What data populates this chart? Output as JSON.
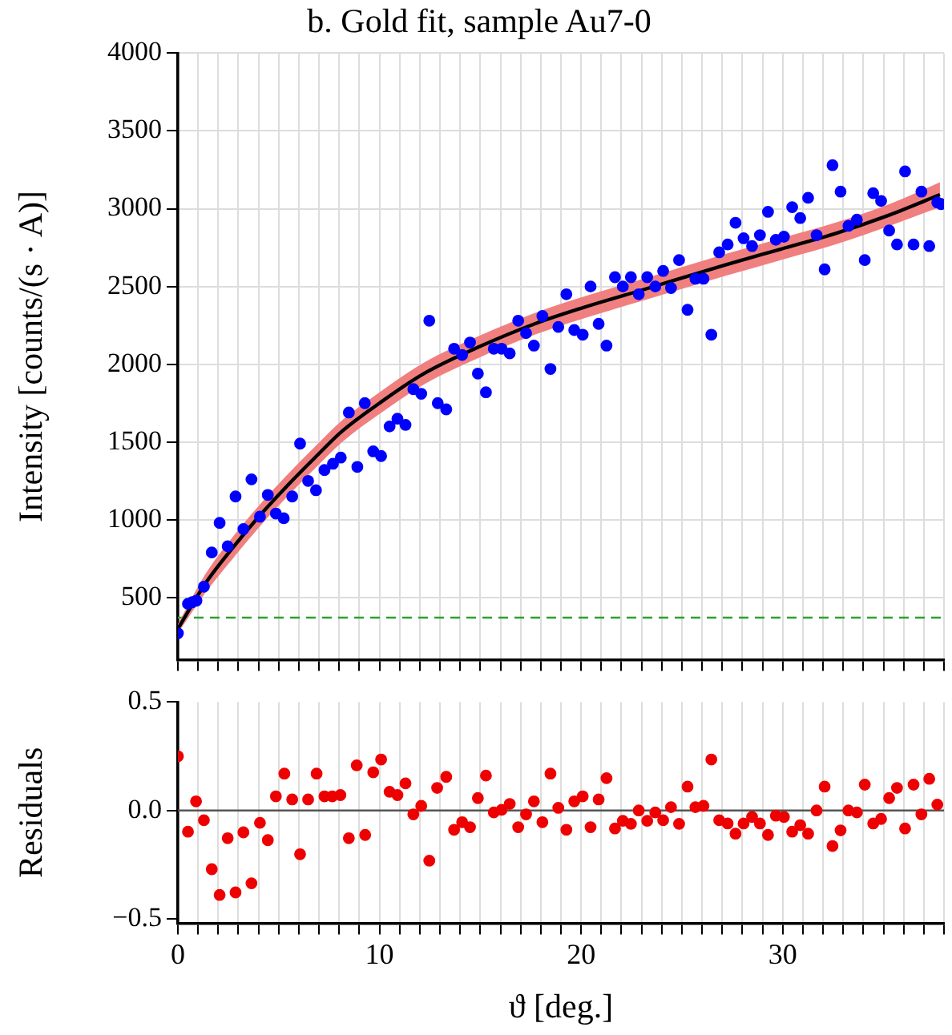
{
  "chart_data": [
    {
      "type": "scatter",
      "title": "b. Gold fit, sample Au7-0",
      "ylabel": "Intensity [counts/(s · A)]",
      "xlim": [
        0,
        38
      ],
      "xticks": [
        0,
        {
          "value": 1,
          "label": null
        },
        {
          "value": 2,
          "label": null
        },
        {
          "value": 3,
          "label": null
        },
        {
          "value": 4,
          "label": null
        },
        {
          "value": 5,
          "label": null
        },
        {
          "value": 6,
          "label": null
        },
        {
          "value": 7,
          "label": null
        },
        {
          "value": 8,
          "label": null
        },
        {
          "value": 9,
          "label": null
        },
        10,
        {
          "value": 11,
          "label": null
        },
        {
          "value": 12,
          "label": null
        },
        {
          "value": 13,
          "label": null
        },
        {
          "value": 14,
          "label": null
        },
        {
          "value": 15,
          "label": null
        },
        {
          "value": 16,
          "label": null
        },
        {
          "value": 17,
          "label": null
        },
        {
          "value": 18,
          "label": null
        },
        {
          "value": 19,
          "label": null
        },
        20,
        {
          "value": 21,
          "label": null
        },
        {
          "value": 22,
          "label": null
        },
        {
          "value": 23,
          "label": null
        },
        {
          "value": 24,
          "label": null
        },
        {
          "value": 25,
          "label": null
        },
        {
          "value": 26,
          "label": null
        },
        {
          "value": 27,
          "label": null
        },
        {
          "value": 28,
          "label": null
        },
        {
          "value": 29,
          "label": null
        },
        30,
        {
          "value": 31,
          "label": null
        },
        {
          "value": 32,
          "label": null
        },
        {
          "value": 33,
          "label": null
        },
        {
          "value": 34,
          "label": null
        },
        {
          "value": 35,
          "label": null
        },
        {
          "value": 36,
          "label": null
        },
        {
          "value": 37,
          "label": null
        },
        {
          "value": 38,
          "label": null
        }
      ],
      "ylim": [
        100,
        4000
      ],
      "yticks": [
        500,
        1000,
        1500,
        2000,
        2500,
        3000,
        3500,
        4000
      ],
      "tick_labels": "y",
      "grid": true,
      "legend": false,
      "marker": "circle",
      "ref_lines": [
        {
          "axis": "y",
          "value": 371,
          "color": "#2ca02c",
          "line_style": "dashed"
        }
      ],
      "series": [
        {
          "type": "scatter",
          "color": "#0000ff",
          "x": [
            0,
            0.5,
            0.71,
            0.92,
            1.29,
            1.68,
            2.07,
            2.47,
            2.86,
            3.25,
            3.65,
            4.07,
            4.46,
            4.86,
            5.25,
            5.67,
            6.06,
            6.46,
            6.85,
            7.27,
            7.69,
            8.08,
            8.48,
            8.9,
            9.27,
            9.69,
            10.08,
            10.5,
            10.89,
            11.29,
            11.68,
            12.07,
            12.47,
            12.89,
            13.31,
            13.7,
            14.1,
            14.49,
            14.88,
            15.28,
            15.67,
            16.06,
            16.46,
            16.88,
            17.27,
            17.66,
            18.08,
            18.48,
            18.87,
            19.27,
            19.66,
            20.08,
            20.47,
            20.87,
            21.26,
            21.68,
            22.07,
            22.47,
            22.86,
            23.28,
            23.68,
            24.07,
            24.46,
            24.86,
            25.28,
            25.67,
            26.07,
            26.46,
            26.85,
            27.27,
            27.66,
            28.06,
            28.48,
            28.87,
            29.27,
            29.66,
            30.06,
            30.47,
            30.87,
            31.26,
            31.68,
            32.08,
            32.47,
            32.87,
            33.26,
            33.68,
            34.07,
            34.49,
            34.88,
            35.28,
            35.67,
            36.07,
            36.49,
            36.88,
            37.27,
            37.67,
            37.86
          ],
          "values": [
            270,
            460,
            470,
            480,
            570,
            790,
            980,
            830,
            1150,
            940,
            1260,
            1020,
            1160,
            1040,
            1010,
            1150,
            1490,
            1250,
            1190,
            1320,
            1360,
            1400,
            1690,
            1340,
            1750,
            1440,
            1410,
            1600,
            1650,
            1610,
            1840,
            1810,
            2280,
            1750,
            1710,
            2100,
            2060,
            2140,
            1940,
            1820,
            2100,
            2100,
            2070,
            2280,
            2200,
            2120,
            2310,
            1970,
            2240,
            2450,
            2220,
            2190,
            2500,
            2260,
            2120,
            2560,
            2500,
            2560,
            2450,
            2560,
            2500,
            2600,
            2490,
            2670,
            2350,
            2550,
            2550,
            2190,
            2720,
            2770,
            2910,
            2810,
            2760,
            2830,
            2980,
            2800,
            2820,
            3010,
            2940,
            3070,
            2830,
            2610,
            3280,
            3110,
            2890,
            2930,
            2670,
            3100,
            3050,
            2860,
            2770,
            3240,
            2770,
            3110,
            2760,
            3040,
            3030
          ]
        },
        {
          "type": "line",
          "color": "#000000",
          "marker": "none",
          "x": [
            0,
            1.36,
            2.72,
            4.08,
            5.43,
            6.8,
            8.15,
            10,
            12.2,
            14.9,
            17.7,
            20,
            23.1,
            27.2,
            29.9,
            32.6,
            35.3,
            37.8
          ],
          "values": [
            300,
            590,
            820,
            1030,
            1220,
            1400,
            1570,
            1750,
            1940,
            2110,
            2260,
            2360,
            2480,
            2640,
            2740,
            2840,
            2960,
            3090
          ],
          "lower": [
            270,
            530,
            750,
            960,
            1150,
            1330,
            1500,
            1680,
            1870,
            2040,
            2190,
            2290,
            2410,
            2570,
            2670,
            2770,
            2890,
            3010
          ],
          "upper": [
            330,
            650,
            890,
            1100,
            1290,
            1470,
            1640,
            1820,
            2010,
            2180,
            2330,
            2430,
            2550,
            2710,
            2810,
            2910,
            3030,
            3170
          ]
        }
      ]
    },
    {
      "type": "scatter",
      "xlabel": "ϑ [deg.]",
      "ylabel": "Residuals",
      "xlim": [
        0,
        38
      ],
      "xticks": [
        0,
        {
          "value": 1,
          "label": null
        },
        {
          "value": 2,
          "label": null
        },
        {
          "value": 3,
          "label": null
        },
        {
          "value": 4,
          "label": null
        },
        {
          "value": 5,
          "label": null
        },
        {
          "value": 6,
          "label": null
        },
        {
          "value": 7,
          "label": null
        },
        {
          "value": 8,
          "label": null
        },
        {
          "value": 9,
          "label": null
        },
        10,
        {
          "value": 11,
          "label": null
        },
        {
          "value": 12,
          "label": null
        },
        {
          "value": 13,
          "label": null
        },
        {
          "value": 14,
          "label": null
        },
        {
          "value": 15,
          "label": null
        },
        {
          "value": 16,
          "label": null
        },
        {
          "value": 17,
          "label": null
        },
        {
          "value": 18,
          "label": null
        },
        {
          "value": 19,
          "label": null
        },
        20,
        {
          "value": 21,
          "label": null
        },
        {
          "value": 22,
          "label": null
        },
        {
          "value": 23,
          "label": null
        },
        {
          "value": 24,
          "label": null
        },
        {
          "value": 25,
          "label": null
        },
        {
          "value": 26,
          "label": null
        },
        {
          "value": 27,
          "label": null
        },
        {
          "value": 28,
          "label": null
        },
        {
          "value": 29,
          "label": null
        },
        30,
        {
          "value": 31,
          "label": null
        },
        {
          "value": 32,
          "label": null
        },
        {
          "value": 33,
          "label": null
        },
        {
          "value": 34,
          "label": null
        },
        {
          "value": 35,
          "label": null
        },
        {
          "value": 36,
          "label": null
        },
        {
          "value": 37,
          "label": null
        },
        {
          "value": 38,
          "label": null
        }
      ],
      "ylim": [
        -0.52,
        0.5
      ],
      "yticks": [
        {
          "value": -0.5,
          "label": "−0.5"
        },
        {
          "value": 0,
          "label": "0.0"
        },
        {
          "value": 0.5,
          "label": "0.5"
        }
      ],
      "grid": "x",
      "legend": false,
      "marker": "circle",
      "ref_lines": [
        {
          "axis": "y",
          "value": 0,
          "color": "#555555",
          "line_style": "solid"
        }
      ],
      "series": [
        {
          "type": "scatter",
          "color": "#ee0000",
          "x": [
            0,
            0.5,
            0.9,
            1.29,
            1.68,
            2.07,
            2.47,
            2.86,
            3.25,
            3.65,
            4.07,
            4.46,
            4.86,
            5.28,
            5.67,
            6.06,
            6.46,
            6.88,
            7.27,
            7.66,
            8.06,
            8.48,
            8.87,
            9.29,
            9.69,
            10.08,
            10.5,
            10.89,
            11.29,
            11.68,
            12.07,
            12.47,
            12.86,
            13.31,
            13.7,
            14.1,
            14.49,
            14.88,
            15.28,
            15.67,
            16.06,
            16.46,
            16.88,
            17.27,
            17.66,
            18.08,
            18.48,
            18.87,
            19.27,
            19.66,
            20.08,
            20.47,
            20.87,
            21.26,
            21.68,
            22.07,
            22.47,
            22.86,
            23.28,
            23.68,
            24.07,
            24.46,
            24.86,
            25.28,
            25.67,
            26.07,
            26.46,
            26.85,
            27.27,
            27.66,
            28.06,
            28.48,
            28.87,
            29.27,
            29.66,
            30.06,
            30.47,
            30.87,
            31.26,
            31.68,
            32.08,
            32.47,
            32.87,
            33.26,
            33.68,
            34.07,
            34.49,
            34.88,
            35.28,
            35.67,
            36.07,
            36.49,
            36.88,
            37.27,
            37.67
          ],
          "values": [
            0.25,
            -0.098,
            0.042,
            -0.045,
            -0.271,
            -0.39,
            -0.128,
            -0.378,
            -0.101,
            -0.336,
            -0.057,
            -0.137,
            0.065,
            0.17,
            0.051,
            -0.202,
            0.051,
            0.17,
            0.065,
            0.065,
            0.071,
            -0.128,
            0.208,
            -0.113,
            0.176,
            0.235,
            0.086,
            0.071,
            0.125,
            -0.018,
            0.021,
            -0.232,
            0.104,
            0.155,
            -0.089,
            -0.054,
            -0.077,
            0.057,
            0.161,
            -0.009,
            0.003,
            0.03,
            -0.077,
            -0.018,
            0.042,
            -0.054,
            0.17,
            0.012,
            -0.089,
            0.042,
            0.065,
            -0.077,
            0.051,
            0.149,
            -0.083,
            -0.048,
            -0.062,
            0,
            -0.048,
            -0.009,
            -0.045,
            0.015,
            -0.062,
            0.11,
            0.015,
            0.021,
            0.235,
            -0.045,
            -0.06,
            -0.107,
            -0.06,
            -0.03,
            -0.06,
            -0.113,
            -0.024,
            -0.03,
            -0.098,
            -0.068,
            -0.107,
            0,
            0.11,
            -0.164,
            -0.092,
            0,
            -0.009,
            0.119,
            -0.06,
            -0.039,
            0.057,
            0.104,
            -0.083,
            0.119,
            -0.018,
            0.146,
            0.027
          ]
        }
      ]
    }
  ]
}
